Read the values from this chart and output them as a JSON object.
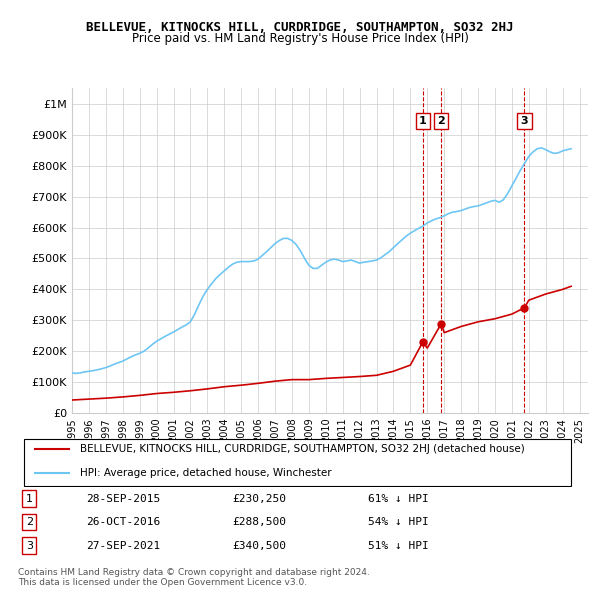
{
  "title": "BELLEVUE, KITNOCKS HILL, CURDRIDGE, SOUTHAMPTON, SO32 2HJ",
  "subtitle": "Price paid vs. HM Land Registry's House Price Index (HPI)",
  "ylabel_ticks": [
    "£0",
    "£100K",
    "£200K",
    "£300K",
    "£400K",
    "£500K",
    "£600K",
    "£700K",
    "£800K",
    "£900K",
    "£1M"
  ],
  "ytick_values": [
    0,
    100000,
    200000,
    300000,
    400000,
    500000,
    600000,
    700000,
    800000,
    900000,
    1000000
  ],
  "ylim": [
    0,
    1050000
  ],
  "xlim_start": 1995.0,
  "xlim_end": 2025.5,
  "hpi_color": "#6ec6f5",
  "price_color": "#cc0000",
  "dashed_color": "#cc0000",
  "sale_marker_color": "#cc0000",
  "vline_color": "#cc0000",
  "grid_color": "#cccccc",
  "background_color": "#ffffff",
  "legend_label_red": "BELLEVUE, KITNOCKS HILL, CURDRIDGE, SOUTHAMPTON, SO32 2HJ (detached house)",
  "legend_label_blue": "HPI: Average price, detached house, Winchester",
  "transactions": [
    {
      "num": 1,
      "date": "28-SEP-2015",
      "price": 230250,
      "pct": "61% ↓ HPI",
      "x": 2015.74
    },
    {
      "num": 2,
      "date": "26-OCT-2016",
      "price": 288500,
      "pct": "54% ↓ HPI",
      "x": 2016.82
    },
    {
      "num": 3,
      "date": "27-SEP-2021",
      "price": 340500,
      "pct": "51% ↓ HPI",
      "x": 2021.74
    }
  ],
  "footnote1": "Contains HM Land Registry data © Crown copyright and database right 2024.",
  "footnote2": "This data is licensed under the Open Government Licence v3.0.",
  "hpi_data": {
    "x": [
      1995.0,
      1995.25,
      1995.5,
      1995.75,
      1996.0,
      1996.25,
      1996.5,
      1996.75,
      1997.0,
      1997.25,
      1997.5,
      1997.75,
      1998.0,
      1998.25,
      1998.5,
      1998.75,
      1999.0,
      1999.25,
      1999.5,
      1999.75,
      2000.0,
      2000.25,
      2000.5,
      2000.75,
      2001.0,
      2001.25,
      2001.5,
      2001.75,
      2002.0,
      2002.25,
      2002.5,
      2002.75,
      2003.0,
      2003.25,
      2003.5,
      2003.75,
      2004.0,
      2004.25,
      2004.5,
      2004.75,
      2005.0,
      2005.25,
      2005.5,
      2005.75,
      2006.0,
      2006.25,
      2006.5,
      2006.75,
      2007.0,
      2007.25,
      2007.5,
      2007.75,
      2008.0,
      2008.25,
      2008.5,
      2008.75,
      2009.0,
      2009.25,
      2009.5,
      2009.75,
      2010.0,
      2010.25,
      2010.5,
      2010.75,
      2011.0,
      2011.25,
      2011.5,
      2011.75,
      2012.0,
      2012.25,
      2012.5,
      2012.75,
      2013.0,
      2013.25,
      2013.5,
      2013.75,
      2014.0,
      2014.25,
      2014.5,
      2014.75,
      2015.0,
      2015.25,
      2015.5,
      2015.75,
      2016.0,
      2016.25,
      2016.5,
      2016.75,
      2017.0,
      2017.25,
      2017.5,
      2017.75,
      2018.0,
      2018.25,
      2018.5,
      2018.75,
      2019.0,
      2019.25,
      2019.5,
      2019.75,
      2020.0,
      2020.25,
      2020.5,
      2020.75,
      2021.0,
      2021.25,
      2021.5,
      2021.75,
      2022.0,
      2022.25,
      2022.5,
      2022.75,
      2023.0,
      2023.25,
      2023.5,
      2023.75,
      2024.0,
      2024.25,
      2024.5
    ],
    "y": [
      130000,
      128000,
      130000,
      133000,
      135000,
      137000,
      140000,
      143000,
      147000,
      152000,
      158000,
      163000,
      168000,
      175000,
      182000,
      188000,
      193000,
      200000,
      210000,
      222000,
      232000,
      240000,
      248000,
      255000,
      262000,
      270000,
      278000,
      285000,
      295000,
      320000,
      350000,
      378000,
      400000,
      418000,
      435000,
      448000,
      460000,
      472000,
      482000,
      488000,
      490000,
      490000,
      490000,
      492000,
      498000,
      510000,
      522000,
      535000,
      548000,
      558000,
      565000,
      565000,
      558000,
      545000,
      525000,
      500000,
      478000,
      468000,
      468000,
      478000,
      488000,
      495000,
      498000,
      495000,
      490000,
      492000,
      495000,
      490000,
      485000,
      488000,
      490000,
      492000,
      495000,
      502000,
      512000,
      522000,
      535000,
      548000,
      560000,
      572000,
      582000,
      590000,
      598000,
      605000,
      615000,
      622000,
      628000,
      632000,
      638000,
      645000,
      650000,
      652000,
      655000,
      660000,
      665000,
      668000,
      670000,
      675000,
      680000,
      685000,
      688000,
      682000,
      690000,
      710000,
      735000,
      760000,
      785000,
      808000,
      830000,
      845000,
      855000,
      858000,
      852000,
      845000,
      840000,
      842000,
      848000,
      852000,
      855000
    ]
  },
  "price_data": {
    "x": [
      1995.0,
      1996.0,
      1997.0,
      1998.0,
      1999.0,
      2000.0,
      2001.0,
      2002.0,
      2003.0,
      2004.0,
      2005.0,
      2006.0,
      2007.0,
      2008.0,
      2009.0,
      2010.0,
      2011.0,
      2012.0,
      2013.0,
      2014.0,
      2015.0,
      2015.74,
      2016.0,
      2016.82,
      2017.0,
      2018.0,
      2019.0,
      2020.0,
      2021.0,
      2021.74,
      2022.0,
      2023.0,
      2024.0,
      2024.5
    ],
    "y": [
      42000,
      45000,
      48000,
      52000,
      57000,
      63000,
      67000,
      72000,
      78000,
      85000,
      90000,
      96000,
      103000,
      108000,
      108000,
      112000,
      115000,
      118000,
      122000,
      135000,
      155000,
      230250,
      210000,
      288500,
      260000,
      280000,
      295000,
      305000,
      320000,
      340500,
      365000,
      385000,
      400000,
      410000
    ]
  }
}
